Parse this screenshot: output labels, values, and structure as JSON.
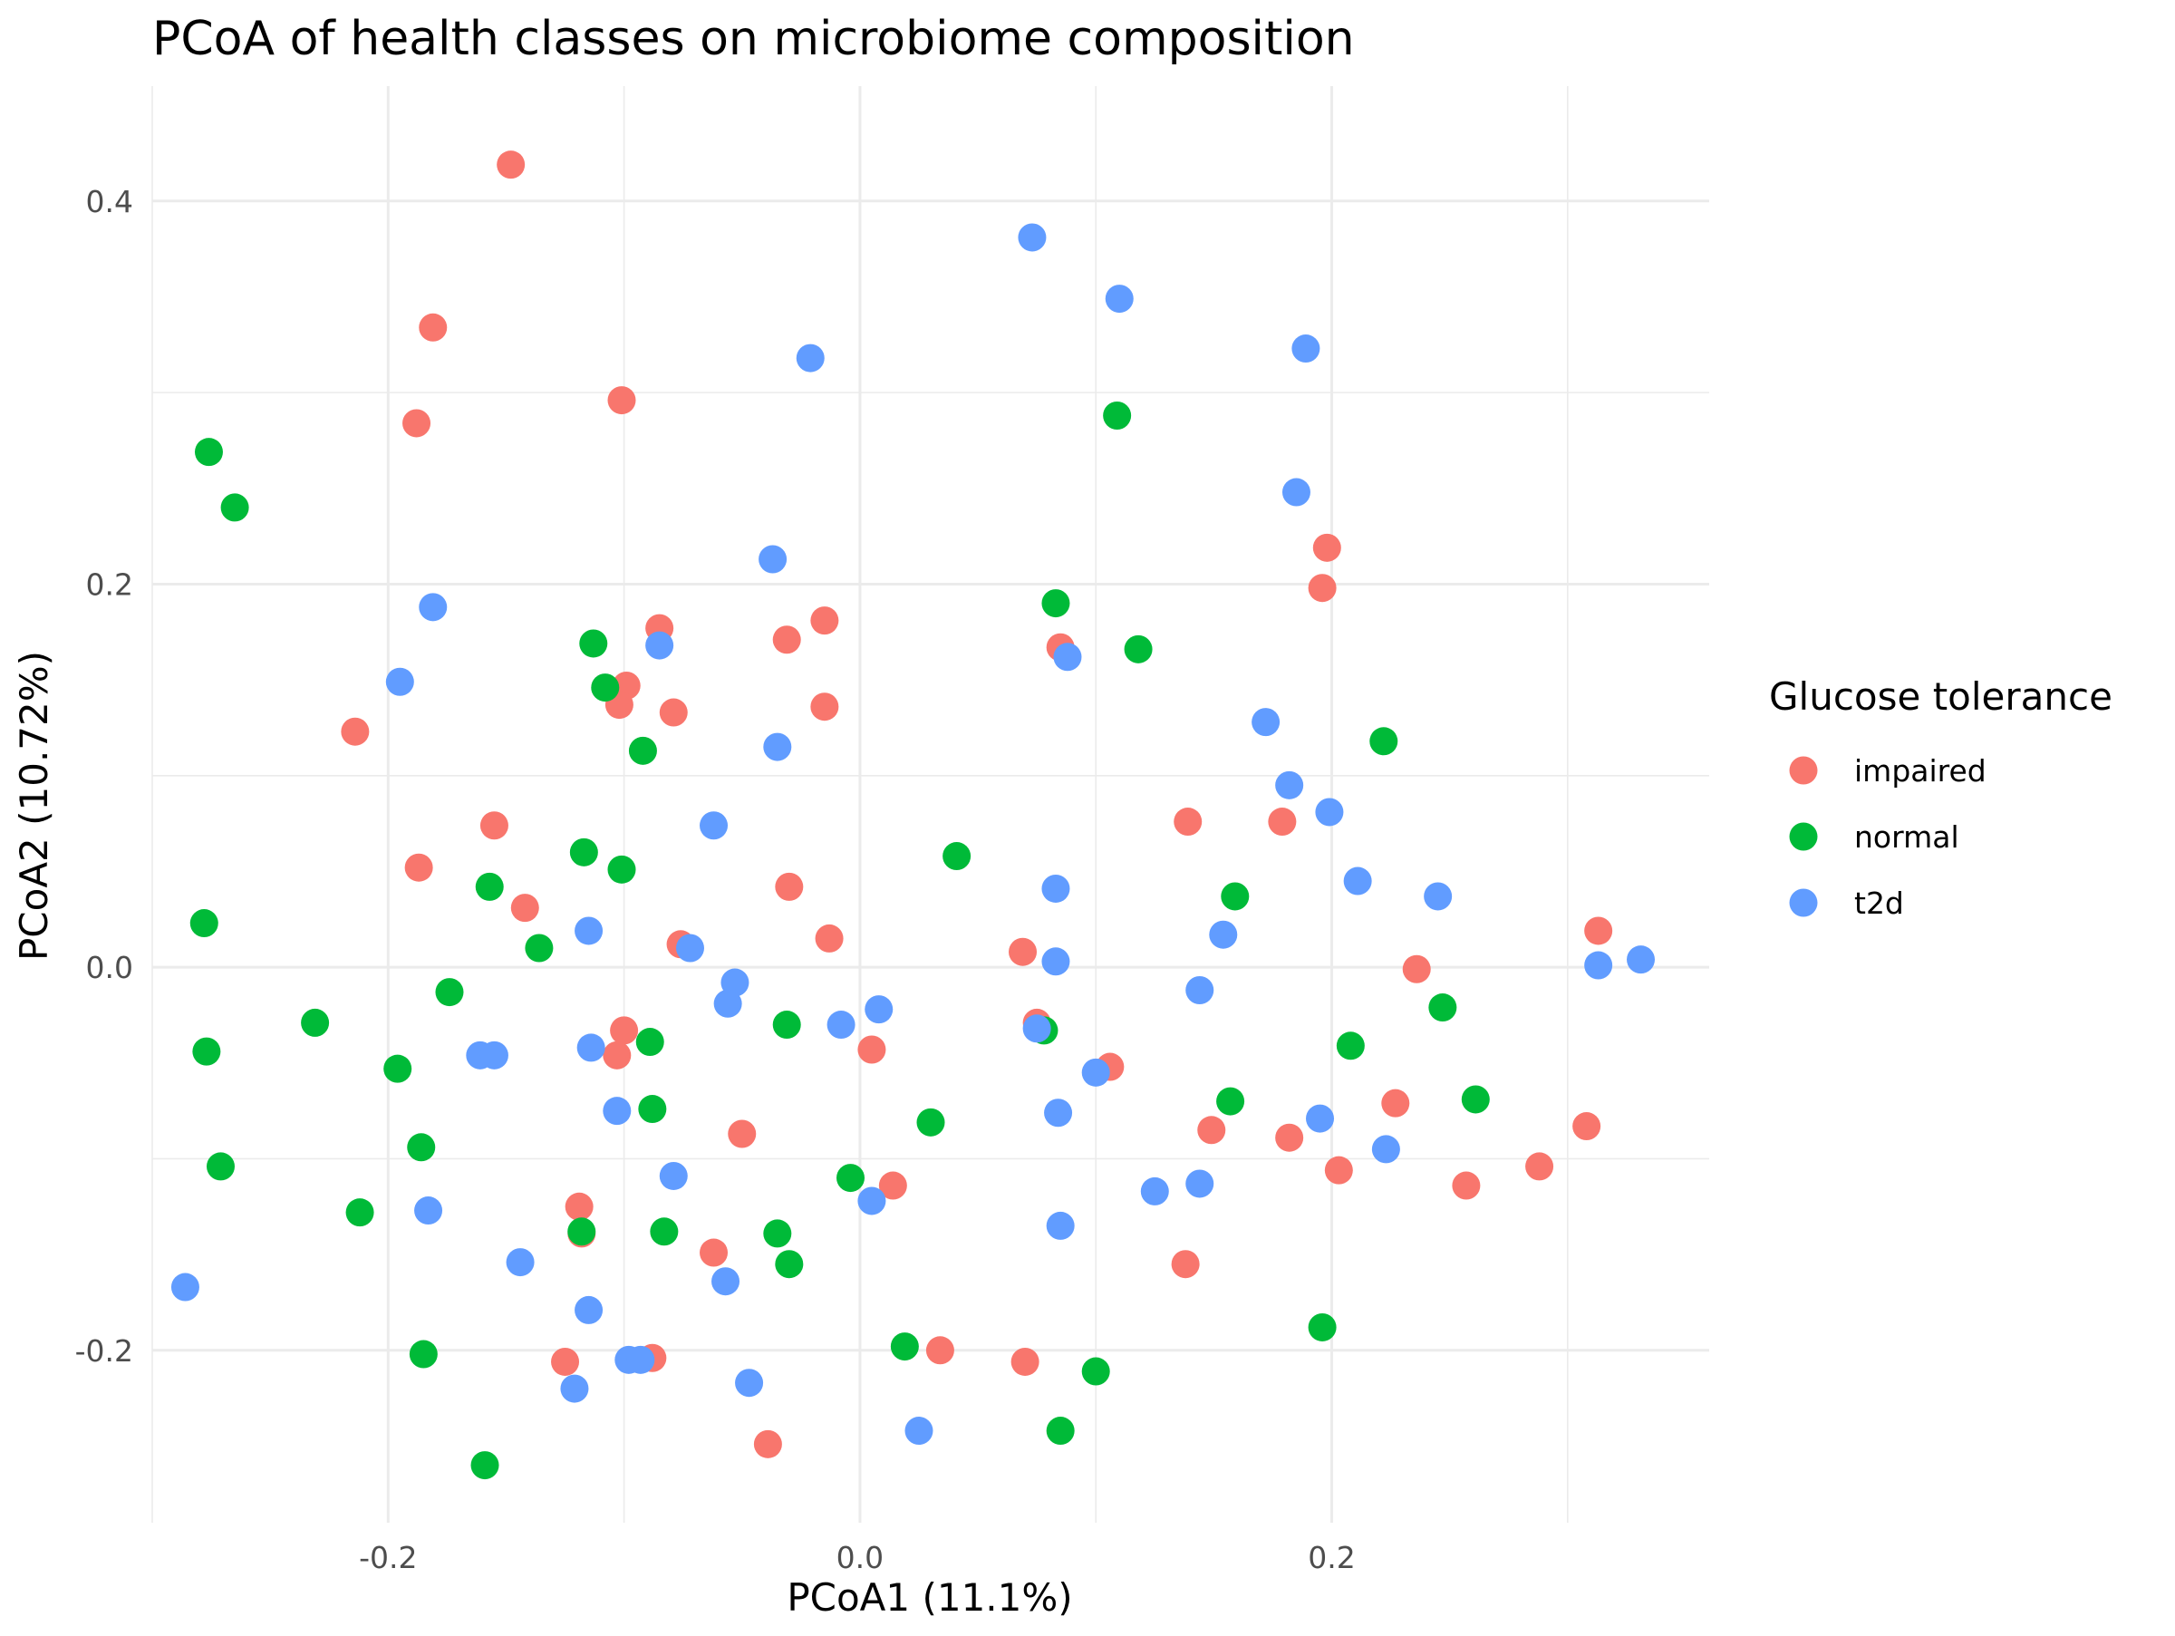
{
  "chart_data": {
    "type": "scatter",
    "title": "PCoA of health classes on microbiome composition",
    "xlabel": "PCoA1 (11.1%)",
    "ylabel": "PCoA2 (10.72%)",
    "xlim": [
      -0.3,
      0.36
    ],
    "ylim": [
      -0.29,
      0.46
    ],
    "x_ticks": [
      -0.2,
      0.0,
      0.2
    ],
    "x_tick_labels": [
      "-0.2",
      "0.0",
      "0.2"
    ],
    "y_ticks": [
      -0.2,
      0.0,
      0.2,
      0.4
    ],
    "y_tick_labels": [
      "-0.2",
      "0.0",
      "0.2",
      "0.4"
    ],
    "grid": true,
    "legend": {
      "title": "Glucose tolerance",
      "position": "right"
    },
    "series": [
      {
        "name": "impaired",
        "color": "#F8766D",
        "points": [
          [
            -0.148,
            0.419
          ],
          [
            -0.181,
            0.334
          ],
          [
            -0.188,
            0.284
          ],
          [
            -0.101,
            0.296
          ],
          [
            -0.214,
            0.123
          ],
          [
            0.198,
            0.219
          ],
          [
            0.196,
            0.198
          ],
          [
            -0.085,
            0.177
          ],
          [
            -0.031,
            0.171
          ],
          [
            -0.015,
            0.181
          ],
          [
            0.085,
            0.167
          ],
          [
            -0.099,
            0.147
          ],
          [
            -0.102,
            0.137
          ],
          [
            -0.079,
            0.133
          ],
          [
            -0.015,
            0.136
          ],
          [
            -0.155,
            0.074
          ],
          [
            -0.187,
            0.052
          ],
          [
            0.139,
            0.076
          ],
          [
            0.179,
            0.076
          ],
          [
            -0.142,
            0.031
          ],
          [
            -0.03,
            0.042
          ],
          [
            -0.076,
            0.012
          ],
          [
            -0.013,
            0.015
          ],
          [
            0.069,
            0.008
          ],
          [
            0.313,
            0.019
          ],
          [
            0.236,
            -0.001
          ],
          [
            -0.1,
            -0.033
          ],
          [
            -0.103,
            -0.046
          ],
          [
            0.075,
            -0.029
          ],
          [
            0.005,
            -0.043
          ],
          [
            0.106,
            -0.052
          ],
          [
            0.227,
            -0.071
          ],
          [
            0.308,
            -0.083
          ],
          [
            -0.05,
            -0.087
          ],
          [
            0.149,
            -0.085
          ],
          [
            0.182,
            -0.089
          ],
          [
            0.203,
            -0.106
          ],
          [
            0.288,
            -0.104
          ],
          [
            0.257,
            -0.114
          ],
          [
            0.014,
            -0.114
          ],
          [
            -0.119,
            -0.125
          ],
          [
            -0.118,
            -0.139
          ],
          [
            -0.062,
            -0.149
          ],
          [
            0.138,
            -0.155
          ],
          [
            -0.125,
            -0.206
          ],
          [
            -0.088,
            -0.204
          ],
          [
            0.034,
            -0.2
          ],
          [
            0.07,
            -0.206
          ],
          [
            -0.039,
            -0.249
          ]
        ]
      },
      {
        "name": "normal",
        "color": "#00BA38",
        "points": [
          [
            -0.276,
            0.269
          ],
          [
            -0.265,
            0.24
          ],
          [
            -0.113,
            0.169
          ],
          [
            -0.108,
            0.146
          ],
          [
            -0.092,
            0.113
          ],
          [
            0.083,
            0.19
          ],
          [
            0.118,
            0.166
          ],
          [
            0.109,
            0.288
          ],
          [
            0.222,
            0.118
          ],
          [
            -0.117,
            0.06
          ],
          [
            -0.101,
            0.051
          ],
          [
            -0.157,
            0.042
          ],
          [
            0.041,
            0.058
          ],
          [
            0.159,
            0.037
          ],
          [
            -0.278,
            0.023
          ],
          [
            -0.136,
            0.01
          ],
          [
            -0.174,
            -0.013
          ],
          [
            0.247,
            -0.021
          ],
          [
            -0.231,
            -0.029
          ],
          [
            -0.089,
            -0.039
          ],
          [
            -0.031,
            -0.03
          ],
          [
            0.078,
            -0.033
          ],
          [
            0.208,
            -0.041
          ],
          [
            -0.277,
            -0.044
          ],
          [
            -0.196,
            -0.053
          ],
          [
            0.157,
            -0.07
          ],
          [
            0.261,
            -0.069
          ],
          [
            -0.088,
            -0.074
          ],
          [
            0.03,
            -0.081
          ],
          [
            -0.186,
            -0.094
          ],
          [
            -0.271,
            -0.104
          ],
          [
            -0.004,
            -0.11
          ],
          [
            -0.212,
            -0.128
          ],
          [
            -0.083,
            -0.138
          ],
          [
            -0.118,
            -0.138
          ],
          [
            -0.035,
            -0.139
          ],
          [
            -0.03,
            -0.155
          ],
          [
            0.019,
            -0.198
          ],
          [
            0.1,
            -0.211
          ],
          [
            0.196,
            -0.188
          ],
          [
            -0.185,
            -0.202
          ],
          [
            0.085,
            -0.242
          ],
          [
            -0.159,
            -0.26
          ]
        ]
      },
      {
        "name": "t2d",
        "color": "#619CFF",
        "points": [
          [
            0.073,
            0.381
          ],
          [
            0.11,
            0.349
          ],
          [
            0.189,
            0.323
          ],
          [
            -0.021,
            0.318
          ],
          [
            0.185,
            0.248
          ],
          [
            -0.037,
            0.213
          ],
          [
            -0.181,
            0.188
          ],
          [
            -0.195,
            0.149
          ],
          [
            -0.085,
            0.168
          ],
          [
            0.088,
            0.162
          ],
          [
            0.172,
            0.128
          ],
          [
            -0.035,
            0.115
          ],
          [
            0.182,
            0.095
          ],
          [
            0.199,
            0.081
          ],
          [
            -0.062,
            0.074
          ],
          [
            0.083,
            0.041
          ],
          [
            0.211,
            0.045
          ],
          [
            0.245,
            0.037
          ],
          [
            -0.115,
            0.019
          ],
          [
            0.154,
            0.017
          ],
          [
            -0.072,
            0.01
          ],
          [
            -0.053,
            -0.008
          ],
          [
            0.083,
            0.003
          ],
          [
            0.313,
            0.001
          ],
          [
            0.331,
            0.004
          ],
          [
            -0.056,
            -0.019
          ],
          [
            0.008,
            -0.022
          ],
          [
            -0.008,
            -0.03
          ],
          [
            0.144,
            -0.012
          ],
          [
            0.075,
            -0.032
          ],
          [
            -0.114,
            -0.042
          ],
          [
            -0.161,
            -0.046
          ],
          [
            -0.155,
            -0.046
          ],
          [
            0.1,
            -0.055
          ],
          [
            -0.103,
            -0.075
          ],
          [
            0.084,
            -0.076
          ],
          [
            0.195,
            -0.079
          ],
          [
            0.223,
            -0.095
          ],
          [
            -0.079,
            -0.109
          ],
          [
            0.125,
            -0.117
          ],
          [
            0.144,
            -0.113
          ],
          [
            0.005,
            -0.122
          ],
          [
            -0.183,
            -0.127
          ],
          [
            0.085,
            -0.135
          ],
          [
            -0.144,
            -0.154
          ],
          [
            -0.057,
            -0.164
          ],
          [
            -0.115,
            -0.179
          ],
          [
            -0.286,
            -0.167
          ],
          [
            -0.098,
            -0.205
          ],
          [
            -0.093,
            -0.205
          ],
          [
            -0.047,
            -0.217
          ],
          [
            -0.121,
            -0.22
          ],
          [
            0.025,
            -0.242
          ]
        ]
      }
    ]
  }
}
